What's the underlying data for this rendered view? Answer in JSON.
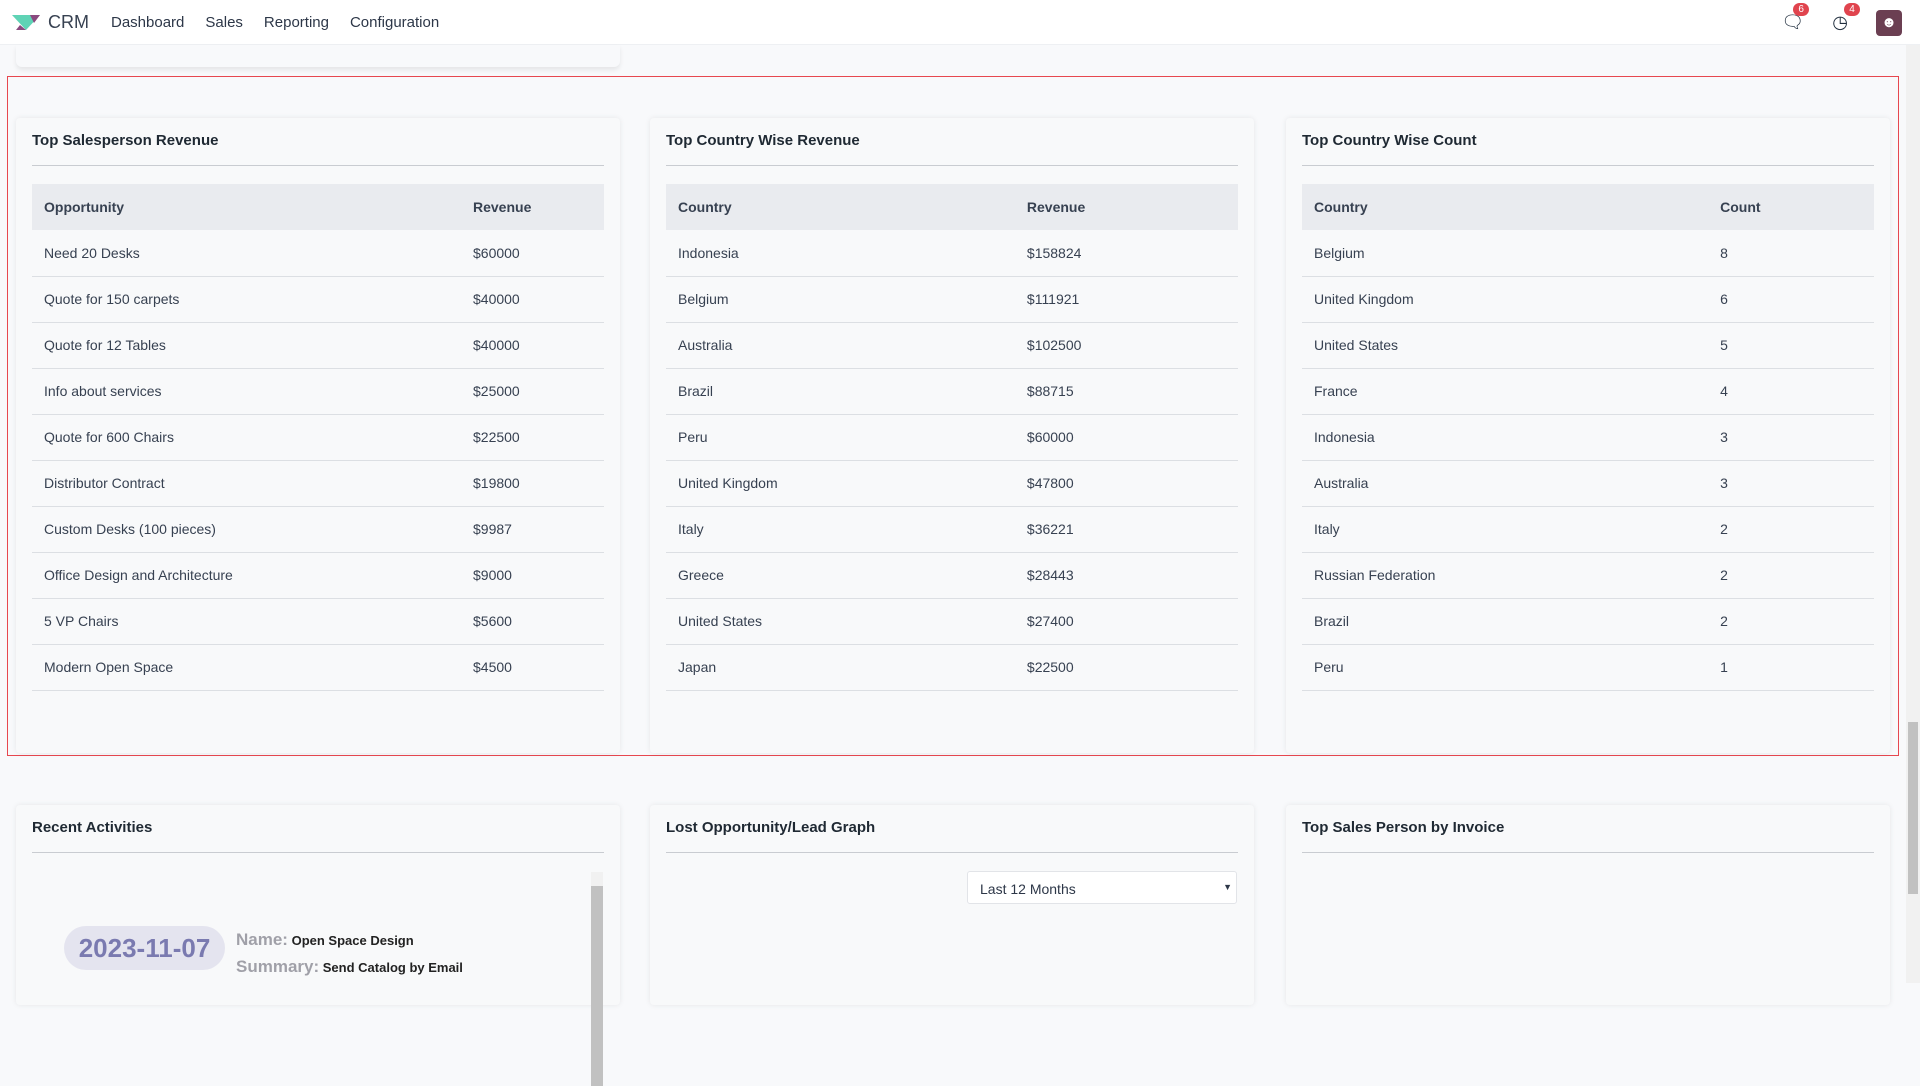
{
  "navbar": {
    "app": "CRM",
    "menu": [
      "Dashboard",
      "Sales",
      "Reporting",
      "Configuration"
    ],
    "messages_count": "6",
    "activities_count": "4",
    "icons": [
      "chat-icon",
      "clock-icon"
    ]
  },
  "salesperson": {
    "title": "Top Salesperson Revenue",
    "headers": [
      "Opportunity",
      "Revenue"
    ],
    "rows": [
      [
        "Need 20 Desks",
        "$60000"
      ],
      [
        "Quote for 150 carpets",
        "$40000"
      ],
      [
        "Quote for 12 Tables",
        "$40000"
      ],
      [
        "Info about services",
        "$25000"
      ],
      [
        "Quote for 600 Chairs",
        "$22500"
      ],
      [
        "Distributor Contract",
        "$19800"
      ],
      [
        "Custom Desks (100 pieces)",
        "$9987"
      ],
      [
        "Office Design and Architecture",
        "$9000"
      ],
      [
        "5 VP Chairs",
        "$5600"
      ],
      [
        "Modern Open Space",
        "$4500"
      ]
    ]
  },
  "country_revenue": {
    "title": "Top Country Wise Revenue",
    "headers": [
      "Country",
      "Revenue"
    ],
    "rows": [
      [
        "Indonesia",
        "$158824"
      ],
      [
        "Belgium",
        "$111921"
      ],
      [
        "Australia",
        "$102500"
      ],
      [
        "Brazil",
        "$88715"
      ],
      [
        "Peru",
        "$60000"
      ],
      [
        "United Kingdom",
        "$47800"
      ],
      [
        "Italy",
        "$36221"
      ],
      [
        "Greece",
        "$28443"
      ],
      [
        "United States",
        "$27400"
      ],
      [
        "Japan",
        "$22500"
      ]
    ]
  },
  "country_count": {
    "title": "Top Country Wise Count",
    "headers": [
      "Country",
      "Count"
    ],
    "rows": [
      [
        "Belgium",
        "8"
      ],
      [
        "United Kingdom",
        "6"
      ],
      [
        "United States",
        "5"
      ],
      [
        "France",
        "4"
      ],
      [
        "Indonesia",
        "3"
      ],
      [
        "Australia",
        "3"
      ],
      [
        "Italy",
        "2"
      ],
      [
        "Russian Federation",
        "2"
      ],
      [
        "Brazil",
        "2"
      ],
      [
        "Peru",
        "1"
      ]
    ]
  },
  "recent": {
    "title": "Recent Activities",
    "date": "2023-11-07",
    "name_label": "Name:",
    "name": "Open Space Design",
    "summary_label": "Summary:",
    "summary": "Send Catalog by Email"
  },
  "lost": {
    "title": "Lost Opportunity/Lead Graph",
    "period": "Last 12 Months"
  },
  "invoice": {
    "title": "Top Sales Person by Invoice"
  }
}
